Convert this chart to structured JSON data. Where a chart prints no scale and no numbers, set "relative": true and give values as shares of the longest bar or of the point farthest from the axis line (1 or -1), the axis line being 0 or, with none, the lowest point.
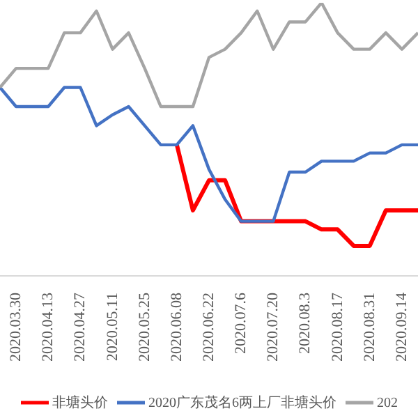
{
  "chart_data": {
    "type": "line",
    "relative": true,
    "categories": [
      null,
      "2020.03.30",
      null,
      "2020.04.13",
      null,
      "2020.04.27",
      null,
      "2020.05.11",
      null,
      "2020.05.25",
      null,
      "2020.06.08",
      null,
      "2020.06.22",
      null,
      "2020.07.6",
      null,
      "2020.07.20",
      null,
      "2020.08.3",
      null,
      "2020.08.17",
      null,
      "2020.08.31",
      null,
      "2020.09.14",
      null
    ],
    "series": [
      {
        "name": "非塘头价",
        "color": "#ff0000",
        "values": [
          null,
          null,
          null,
          null,
          null,
          null,
          null,
          null,
          null,
          null,
          null,
          0.48,
          0.24,
          0.35,
          0.35,
          0.2,
          0.2,
          0.2,
          0.2,
          0.2,
          0.17,
          0.17,
          0.11,
          0.11,
          0.24,
          0.24,
          0.24
        ]
      },
      {
        "name": "2020广东茂名6两上厂非塘头价",
        "color": "#4472c4",
        "values": [
          0.69,
          0.62,
          0.62,
          0.62,
          0.69,
          0.69,
          0.55,
          0.59,
          0.62,
          0.55,
          0.48,
          0.48,
          0.55,
          0.39,
          0.28,
          0.2,
          0.2,
          0.2,
          0.38,
          0.38,
          0.42,
          0.42,
          0.42,
          0.45,
          0.45,
          0.48,
          0.48
        ]
      },
      {
        "name": "202",
        "color": "#a5a5a5",
        "values": [
          0.69,
          0.76,
          0.76,
          0.76,
          0.89,
          0.89,
          0.97,
          0.83,
          0.89,
          0.76,
          0.62,
          0.62,
          0.62,
          0.8,
          0.83,
          0.89,
          0.97,
          0.83,
          0.93,
          0.93,
          1,
          0.89,
          0.83,
          0.83,
          0.89,
          0.83,
          0.89
        ]
      }
    ],
    "legend": "bottom",
    "grid": false,
    "marker": "none",
    "line_style": "solid"
  }
}
